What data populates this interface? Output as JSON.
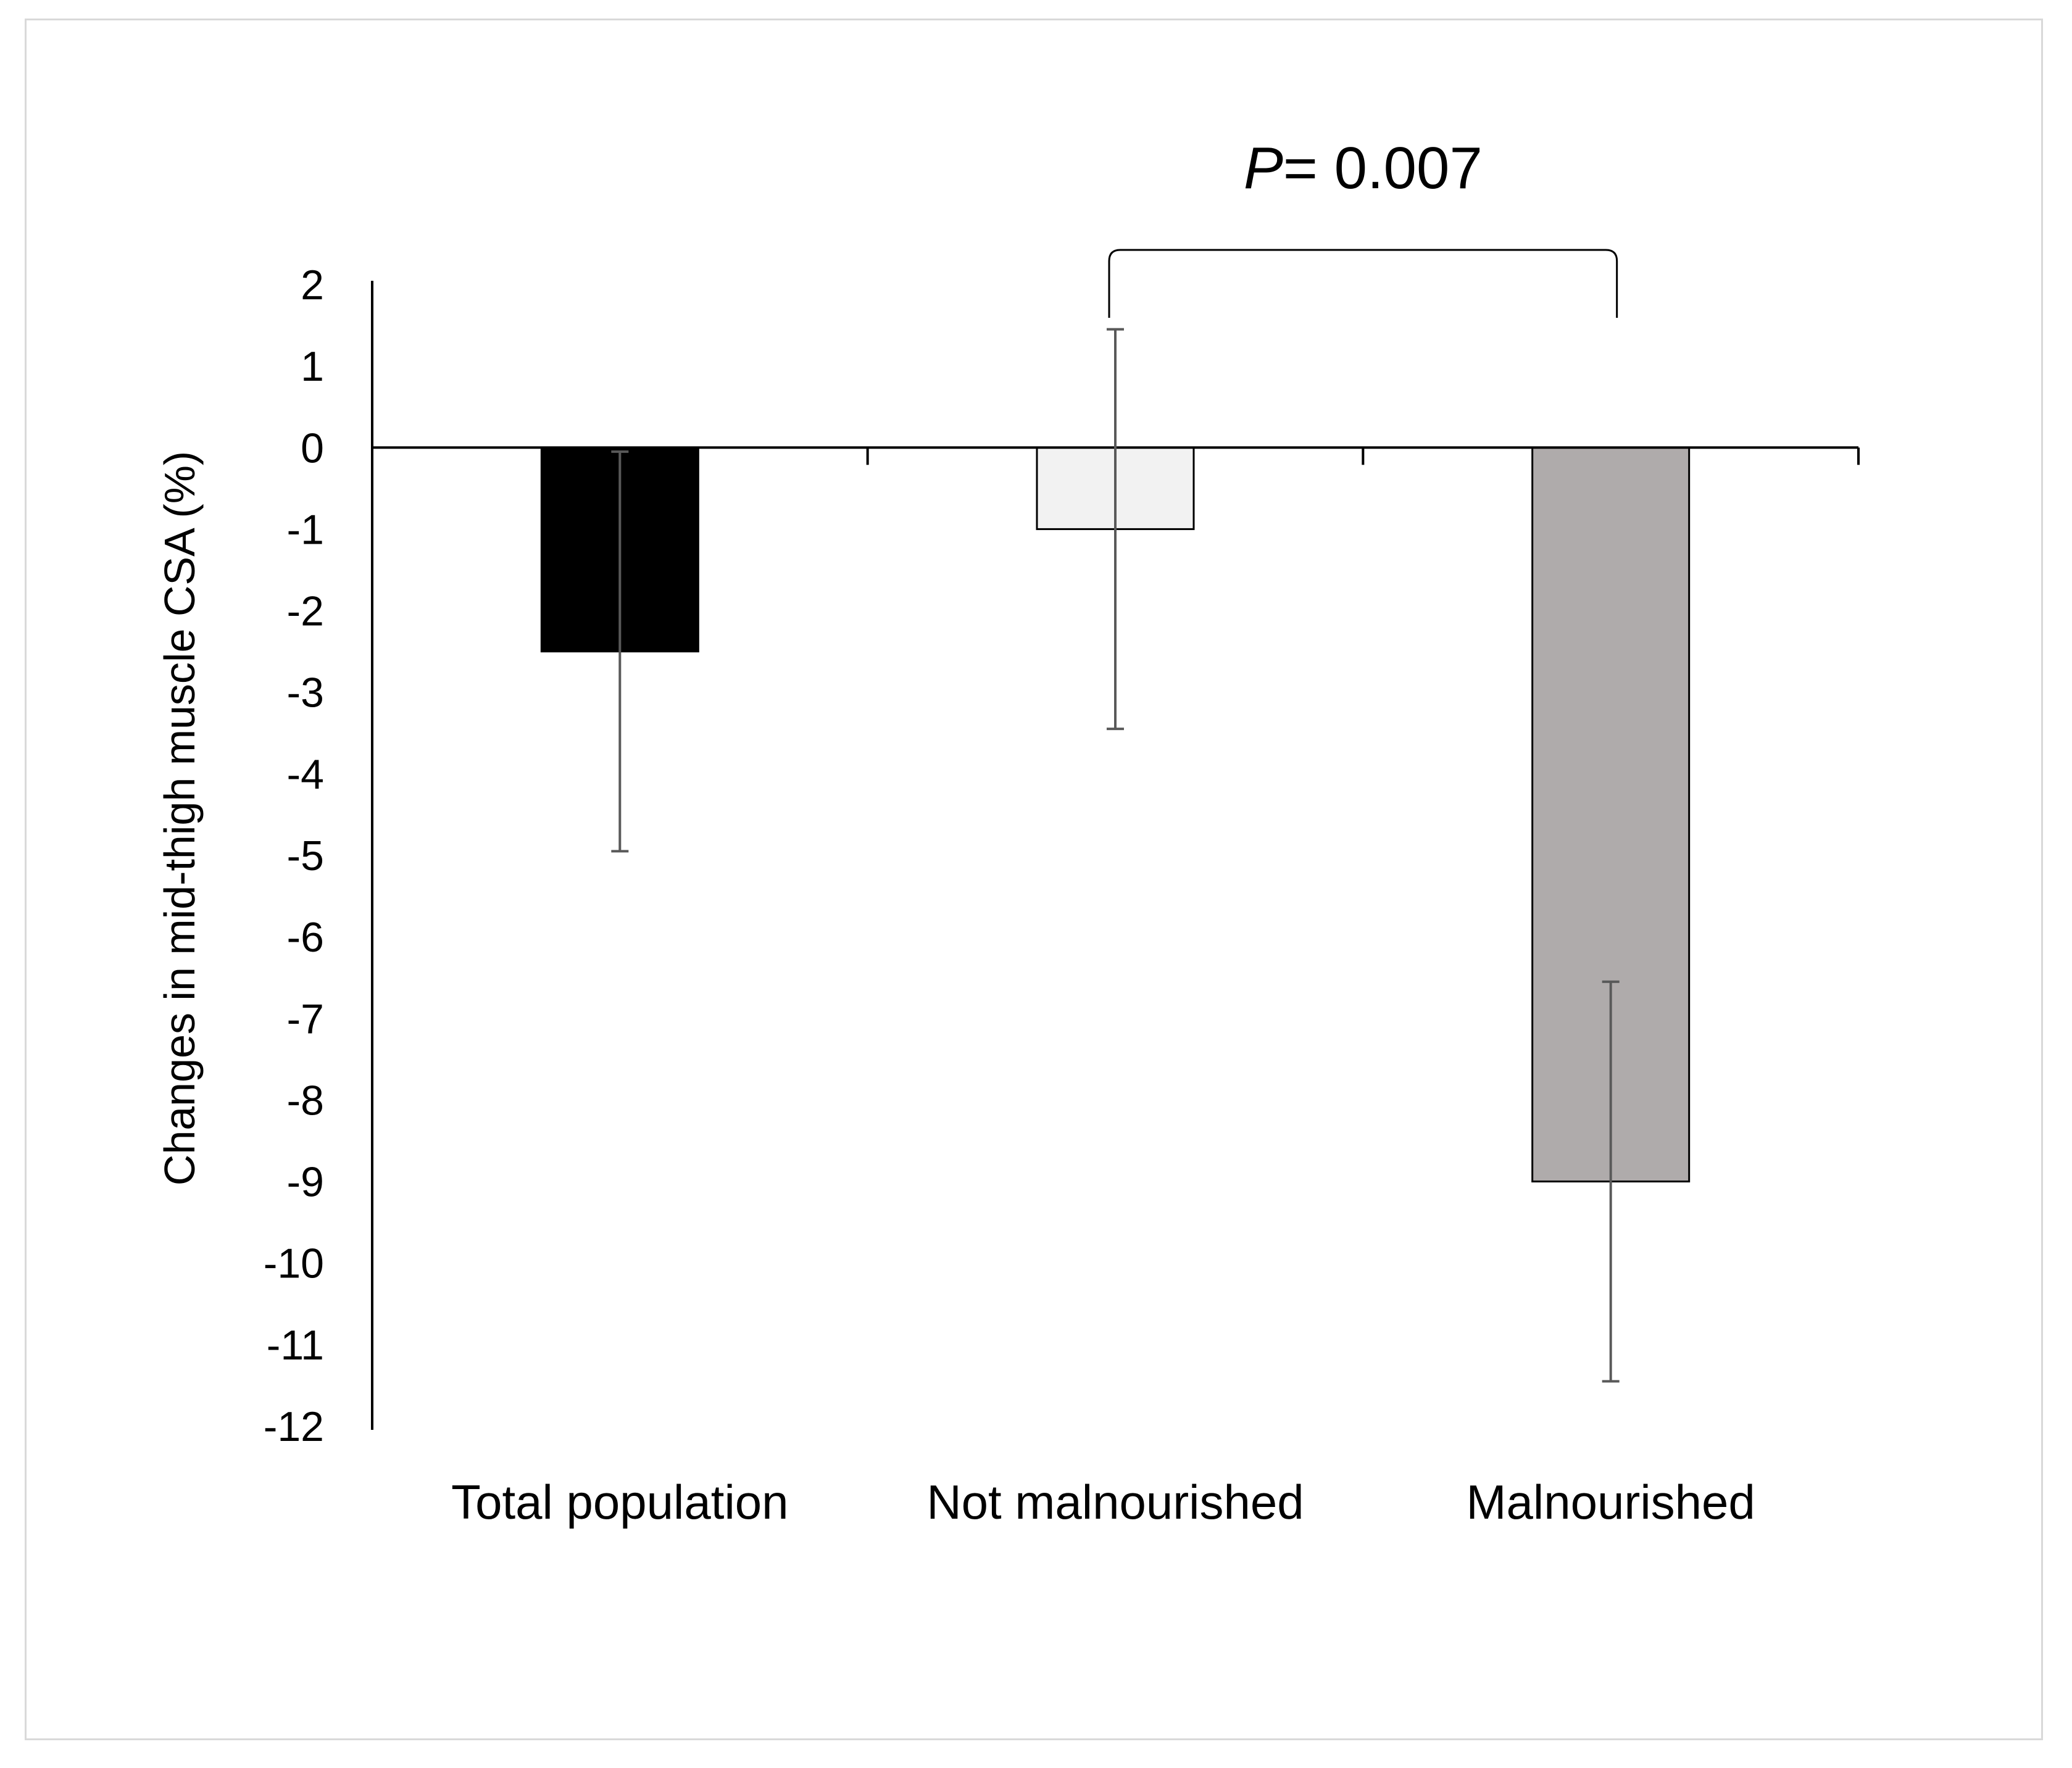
{
  "chart_data": {
    "type": "bar",
    "title": "",
    "xlabel": "",
    "ylabel": "Changes in mid-thigh muscle CSA (%)",
    "ylim": [
      -12,
      2
    ],
    "yticks": [
      2,
      1,
      0,
      -1,
      -2,
      -3,
      -4,
      -5,
      -6,
      -7,
      -8,
      -9,
      -10,
      -11,
      -12
    ],
    "grid": false,
    "legend": "none",
    "categories": [
      "Total population",
      "Not malnourished",
      "Malnourished"
    ],
    "values": [
      -2.5,
      -1.0,
      -9.0
    ],
    "error_bars": [
      {
        "low": -4.95,
        "high": -0.05
      },
      {
        "low": -3.45,
        "high": 1.45
      },
      {
        "low": -11.45,
        "high": -6.55
      }
    ],
    "colors": [
      "#000000",
      "#f2f2f2",
      "#afabab"
    ],
    "annotation": {
      "text_prefix": "P",
      "text_suffix": "= 0.007",
      "between": [
        "Not malnourished",
        "Malnourished"
      ]
    }
  }
}
